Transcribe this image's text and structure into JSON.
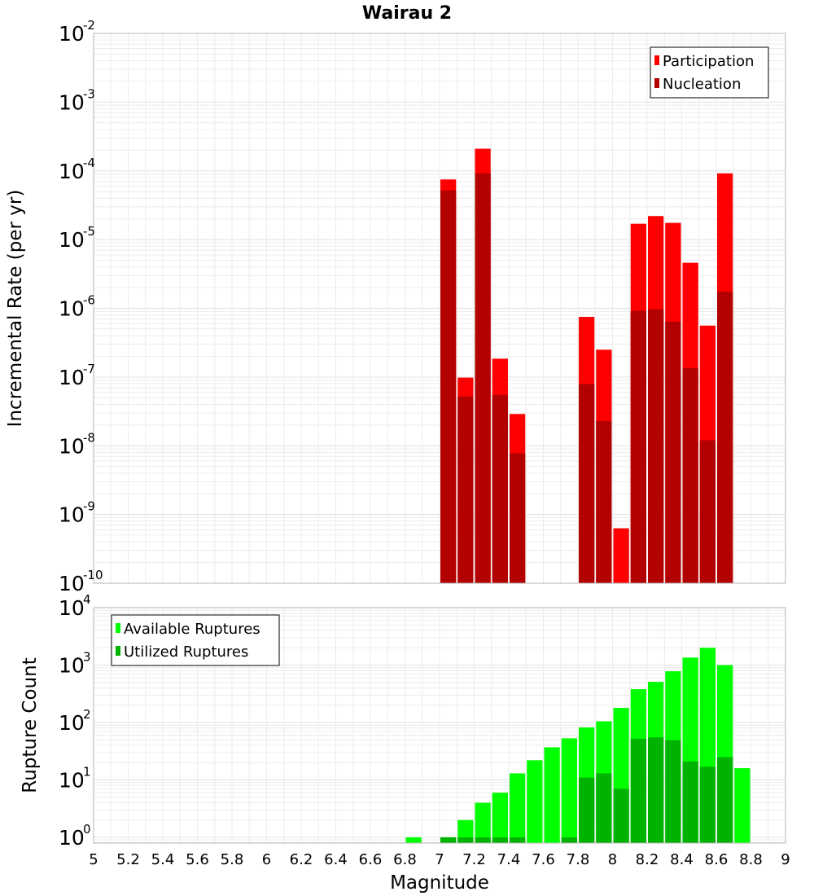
{
  "title": "Wairau 2",
  "colors": {
    "participation": "#ff0000",
    "nucleation": "#b30000",
    "available": "#00ff00",
    "utilized": "#00b300",
    "frame": "#b4b4b4"
  },
  "chart_data": [
    {
      "type": "bar",
      "scale": "log",
      "ylabel": "Incremental Rate (per yr)",
      "ylim_exp": [
        -10,
        -2
      ],
      "xlim": [
        5,
        9
      ],
      "bar_width": 0.1,
      "legend_position": "top-right",
      "series": [
        {
          "name": "Participation",
          "color_key": "participation",
          "x": [
            7.05,
            7.15,
            7.25,
            7.35,
            7.45,
            7.85,
            7.95,
            8.05,
            8.15,
            8.25,
            8.35,
            8.45,
            8.55,
            8.65
          ],
          "values": [
            7.5e-05,
            9.8e-08,
            0.00021,
            1.85e-07,
            2.9e-08,
            7.5e-07,
            2.5e-07,
            6.3e-10,
            1.7e-05,
            2.2e-05,
            1.75e-05,
            4.6e-06,
            5.6e-07,
            9.2e-05
          ]
        },
        {
          "name": "Nucleation",
          "color_key": "nucleation",
          "x": [
            7.05,
            7.15,
            7.25,
            7.35,
            7.45,
            7.85,
            7.95,
            8.15,
            8.25,
            8.35,
            8.45,
            8.55,
            8.65
          ],
          "values": [
            5.2e-05,
            5.2e-08,
            9.2e-05,
            5.5e-08,
            7.8e-09,
            7.9e-08,
            2.3e-08,
            9.2e-07,
            9.7e-07,
            6.4e-07,
            1.35e-07,
            1.2e-08,
            1.75e-06
          ]
        }
      ]
    },
    {
      "type": "bar",
      "scale": "log",
      "ylabel": "Rupture Count",
      "xlabel": "Magnitude",
      "ylim_exp": [
        -0.1,
        4
      ],
      "xlim": [
        5,
        9
      ],
      "bar_width": 0.1,
      "legend_position": "top-left",
      "xticks": [
        "5",
        "5.2",
        "5.4",
        "5.6",
        "5.8",
        "6",
        "6.2",
        "6.4",
        "6.6",
        "6.8",
        "7",
        "7.2",
        "7.4",
        "7.6",
        "7.8",
        "8",
        "8.2",
        "8.4",
        "8.6",
        "8.8",
        "9"
      ],
      "series": [
        {
          "name": "Available Ruptures",
          "color_key": "available",
          "x": [
            6.85,
            7.05,
            7.15,
            7.25,
            7.35,
            7.45,
            7.55,
            7.65,
            7.75,
            7.85,
            7.95,
            8.05,
            8.15,
            8.25,
            8.35,
            8.45,
            8.55,
            8.65,
            8.75
          ],
          "values": [
            1,
            1,
            2,
            4,
            6,
            13,
            22,
            37,
            53,
            82,
            105,
            180,
            380,
            510,
            780,
            1350,
            2000,
            1000,
            16
          ]
        },
        {
          "name": "Utilized Ruptures",
          "color_key": "utilized",
          "x": [
            7.05,
            7.15,
            7.25,
            7.35,
            7.45,
            7.75,
            7.85,
            7.95,
            8.05,
            8.15,
            8.25,
            8.35,
            8.45,
            8.55,
            8.65
          ],
          "values": [
            1,
            1,
            1,
            1,
            1,
            1,
            11,
            13,
            7,
            52,
            55,
            49,
            21,
            17,
            25
          ]
        }
      ]
    }
  ]
}
